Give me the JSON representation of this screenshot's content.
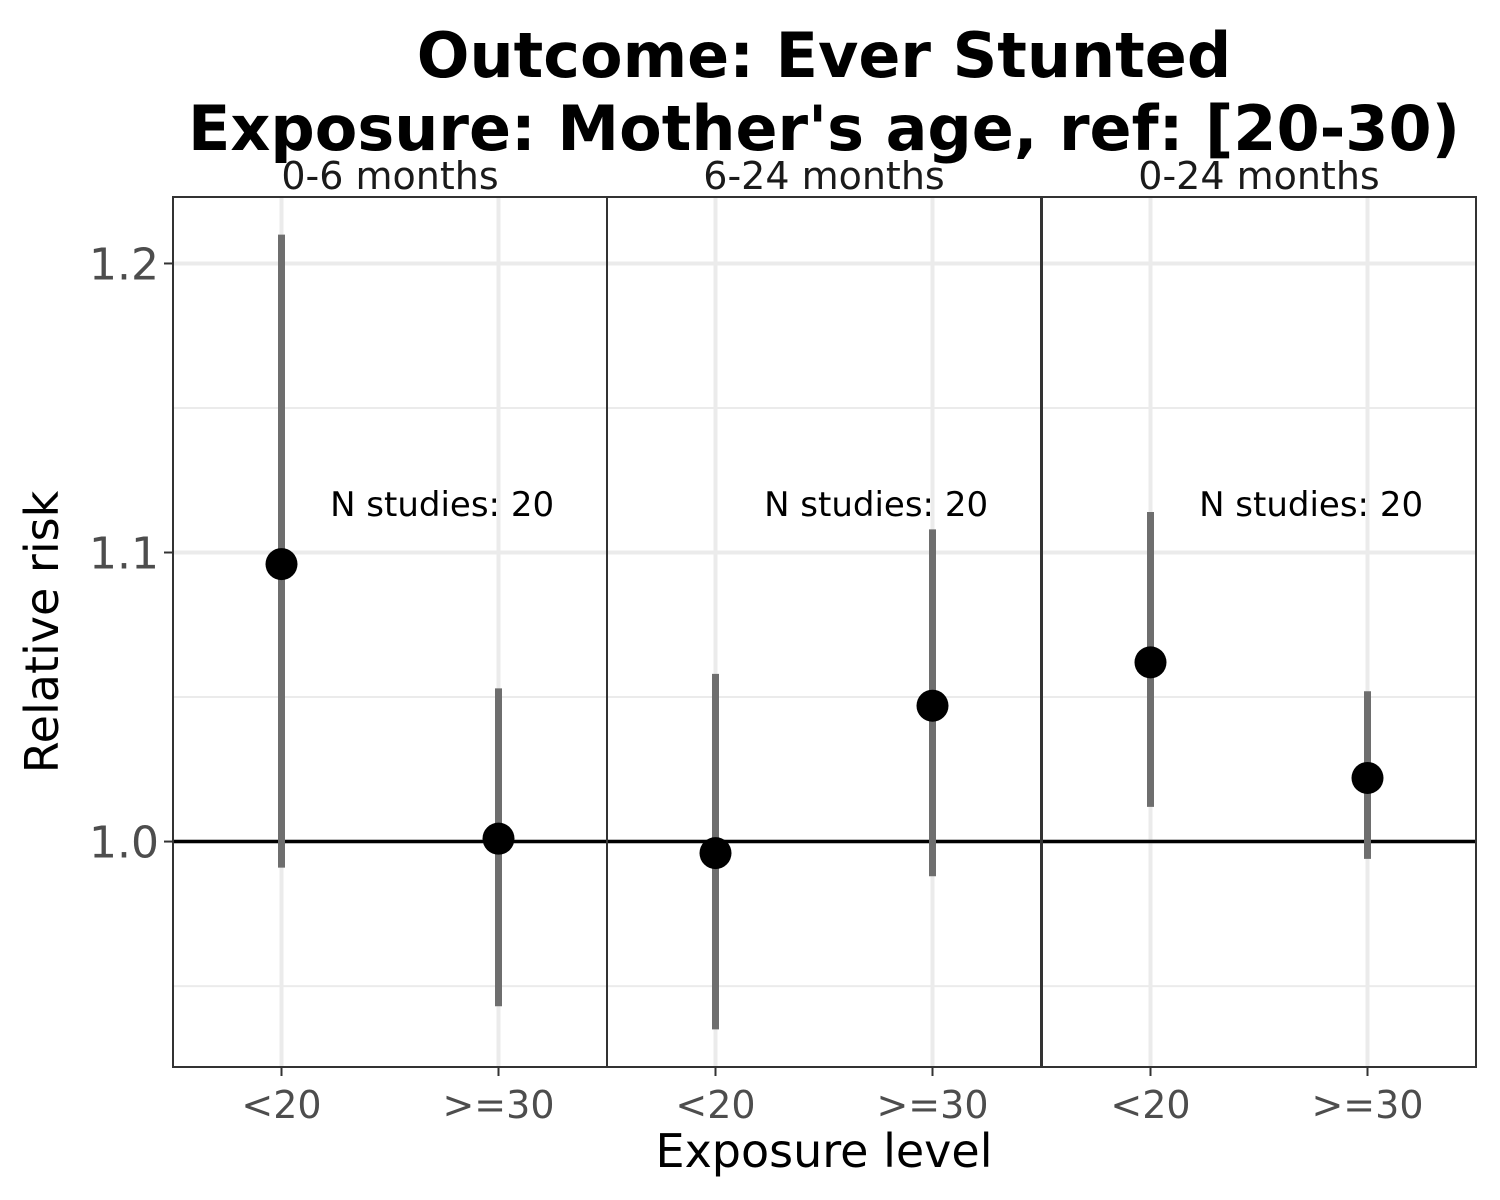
{
  "chart_data": {
    "type": "scatter",
    "title_lines": [
      "Outcome: Ever Stunted",
      "Exposure: Mother's age, ref: [20-30)"
    ],
    "xlabel": "Exposure level",
    "ylabel": "Relative risk",
    "categories": [
      "<20",
      ">=30"
    ],
    "ylim": [
      0.922,
      1.223
    ],
    "yticks": [
      1.0,
      1.1,
      1.2
    ],
    "ytick_labels": [
      "1.0",
      "1.1",
      "1.2"
    ],
    "reference_line": 1.0,
    "grid": true,
    "colors": {
      "point": "#000000",
      "ci": "#6e6e6e",
      "grid": "#ebebeb",
      "ref_line": "#000000"
    },
    "panels": [
      {
        "label": "0-6 months",
        "annotation": "N studies: 20",
        "points": [
          {
            "x": "<20",
            "rr": 1.096,
            "ci_lower": 0.991,
            "ci_upper": 1.21
          },
          {
            "x": ">=30",
            "rr": 1.001,
            "ci_lower": 0.943,
            "ci_upper": 1.053
          }
        ]
      },
      {
        "label": "6-24 months",
        "annotation": "N studies: 20",
        "points": [
          {
            "x": "<20",
            "rr": 0.996,
            "ci_lower": 0.935,
            "ci_upper": 1.058
          },
          {
            "x": ">=30",
            "rr": 1.047,
            "ci_lower": 0.988,
            "ci_upper": 1.108
          }
        ]
      },
      {
        "label": "0-24 months",
        "annotation": "N studies: 20",
        "points": [
          {
            "x": "<20",
            "rr": 1.062,
            "ci_lower": 1.012,
            "ci_upper": 1.114
          },
          {
            "x": ">=30",
            "rr": 1.022,
            "ci_lower": 0.994,
            "ci_upper": 1.052
          }
        ]
      }
    ]
  }
}
